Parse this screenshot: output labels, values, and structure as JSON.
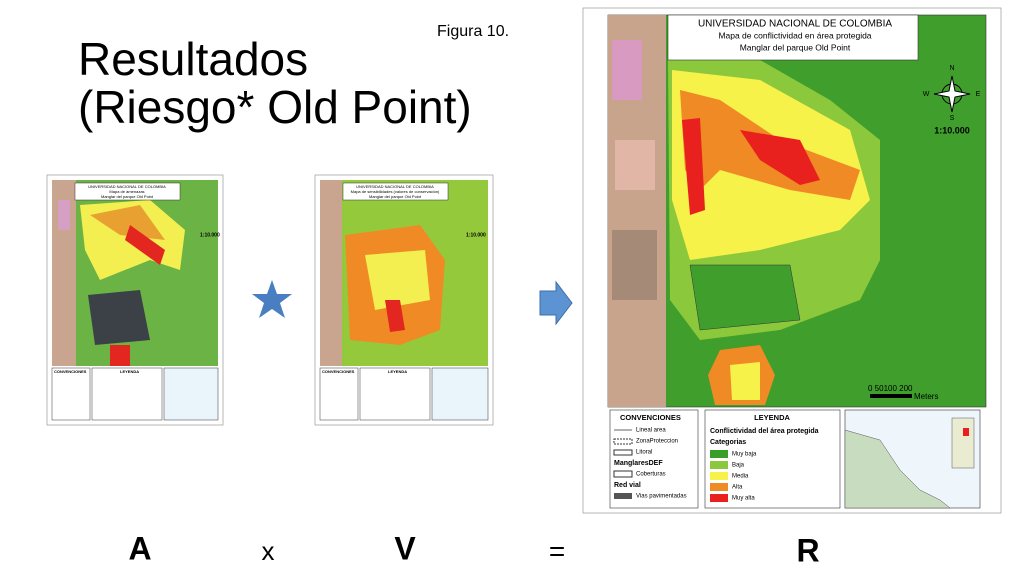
{
  "slide": {
    "title_line1": "Resultados",
    "title_line2": "(Riesgo* Old Point)",
    "figure_label": "Figura 10.",
    "equation": {
      "a": "A",
      "times": "x",
      "v": "V",
      "equals": "=",
      "r": "R"
    },
    "map_a": {
      "title1": "UNIVERSIDAD NACIONAL DE COLOMBIA",
      "title2": "Mapa de amenazas",
      "title3": "Manglar del parque Old Point",
      "scale": "1:10.000",
      "conventions": "CONVENCIONES",
      "legend": "LEYENDA"
    },
    "map_v": {
      "title1": "UNIVERSIDAD NACIONAL DE COLOMBIA",
      "title2": "Mapa de sensibilidades (valores de conservación)",
      "title3": "Manglar del parque Old Point",
      "scale": "1:10.000",
      "conventions": "CONVENCIONES",
      "legend": "LEYENDA"
    },
    "map_r": {
      "title1": "UNIVERSIDAD NACIONAL DE COLOMBIA",
      "title2": "Mapa de conflictividad en área protegida",
      "title3": "Manglar del parque Old Point",
      "north": "N",
      "west": "W",
      "east": "E",
      "south": "S",
      "scale": "1:10.000",
      "scalebar": "0 50100  200",
      "units": "Meters",
      "conventions": {
        "title": "CONVENCIONES",
        "items": [
          "Lineal area",
          "ZonaProteccion",
          "Litoral",
          "ManglaresDEF",
          "Coberturas",
          "Red vial",
          "Vias pavimentadas"
        ]
      },
      "legend": {
        "title": "LEYENDA",
        "subtitle": "Conflictividad del área protegida",
        "heading": "Categorias",
        "items": [
          "Muy baja",
          "Baja",
          "Media",
          "Alta",
          "Muy alta"
        ]
      }
    }
  }
}
